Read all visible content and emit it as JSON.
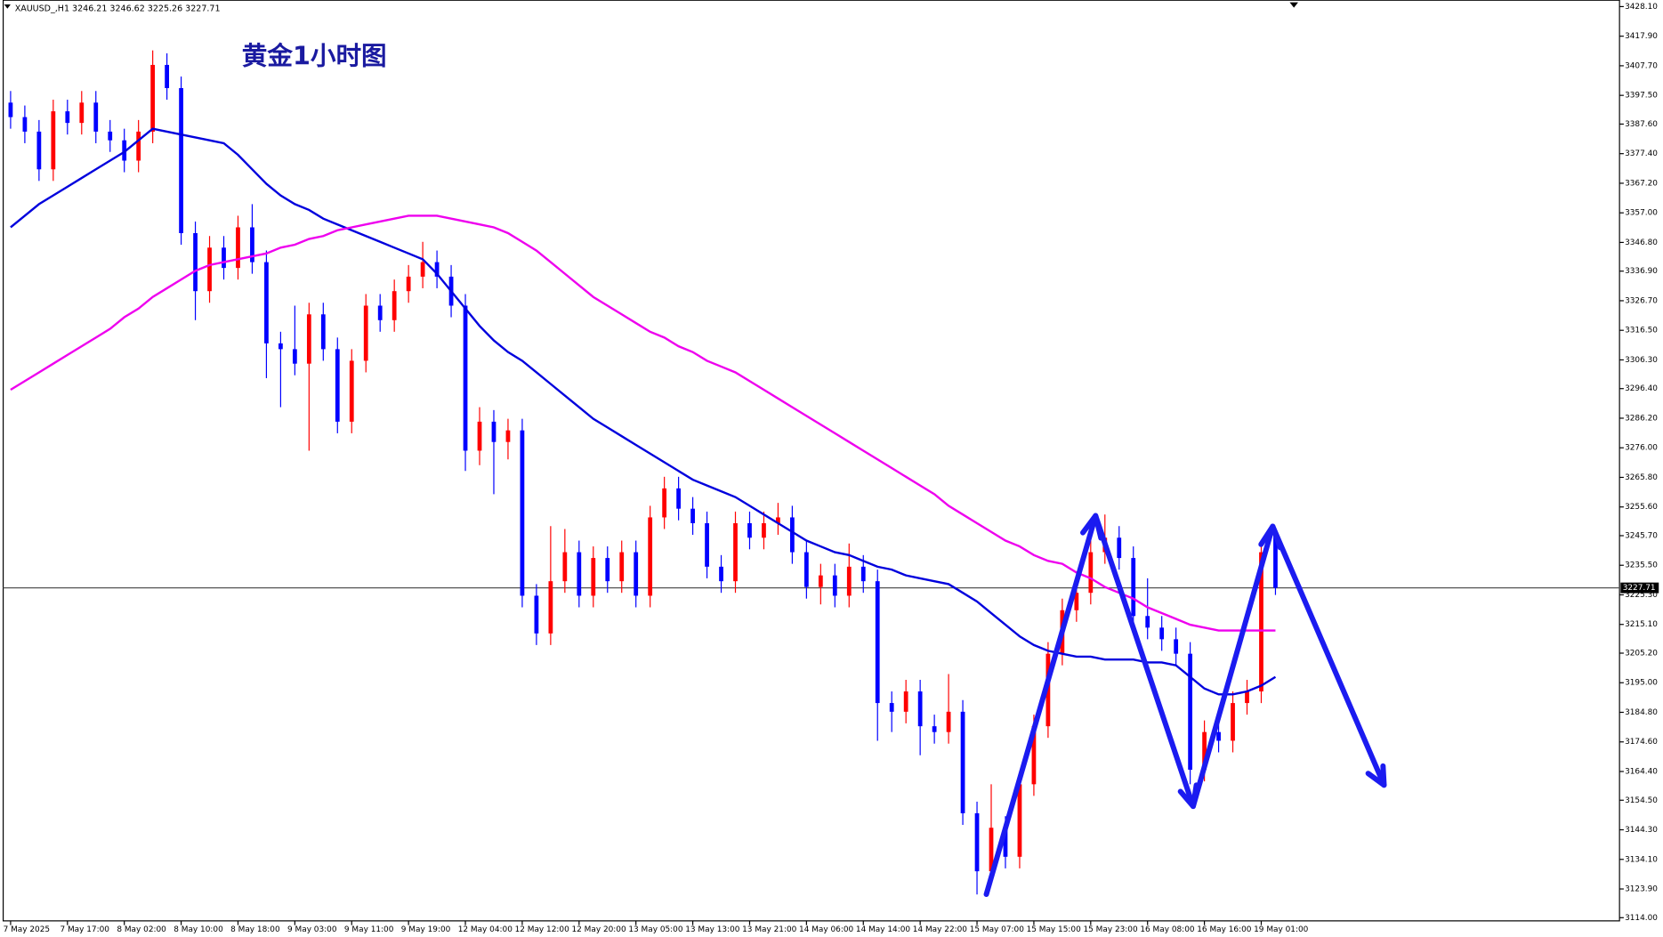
{
  "chart_data": {
    "type": "candlestick",
    "header": "XAUUSD_,H1  3246.21 3246.62 3225.26 3227.71",
    "title": "黄金1小时图",
    "up_color": "#ff0000",
    "down_color": "#0000ff",
    "categories": [
      "7 May 2025",
      null,
      null,
      null,
      "7 May 17:00",
      null,
      null,
      null,
      "8 May 02:00",
      null,
      null,
      null,
      "8 May 10:00",
      null,
      null,
      null,
      "8 May 18:00",
      null,
      null,
      null,
      "9 May 03:00",
      null,
      null,
      null,
      "9 May 11:00",
      null,
      null,
      null,
      "9 May 19:00",
      null,
      null,
      null,
      "12 May 04:00",
      null,
      null,
      null,
      "12 May 12:00",
      null,
      null,
      null,
      "12 May 20:00",
      null,
      null,
      null,
      "13 May 05:00",
      null,
      null,
      null,
      "13 May 13:00",
      null,
      null,
      null,
      "13 May 21:00",
      null,
      null,
      null,
      "14 May 06:00",
      null,
      null,
      null,
      "14 May 14:00",
      null,
      null,
      null,
      "14 May 22:00",
      null,
      null,
      null,
      "15 May 07:00",
      null,
      null,
      null,
      "15 May 15:00",
      null,
      null,
      null,
      "15 May 23:00",
      null,
      null,
      null,
      "16 May 08:00",
      null,
      null,
      null,
      "16 May 16:00",
      null,
      null,
      null,
      "19 May 01:00",
      null
    ],
    "open": [
      3395,
      3390,
      3385,
      3372,
      3392,
      3388,
      3395,
      3385,
      3382,
      3375,
      3385,
      3408,
      3400,
      3350,
      3330,
      3345,
      3338,
      3352,
      3340,
      3312,
      3310,
      3305,
      3322,
      3310,
      3285,
      3306,
      3325,
      3320,
      3330,
      3335,
      3340,
      3335,
      3325,
      3275,
      3285,
      3278,
      3282,
      3225,
      3212,
      3230,
      3240,
      3225,
      3238,
      3230,
      3240,
      3225,
      3252,
      3262,
      3255,
      3250,
      3235,
      3230,
      3250,
      3245,
      3250,
      3252,
      3240,
      3228,
      3232,
      3225,
      3235,
      3230,
      3188,
      3185,
      3192,
      3180,
      3178,
      3185,
      3150,
      3130,
      3145,
      3135,
      3160,
      3180,
      3205,
      3220,
      3226,
      3240,
      3245,
      3238,
      3218,
      3214,
      3210,
      3205,
      3165,
      3178,
      3175,
      3188,
      3192,
      3246.21
    ],
    "high": [
      3399,
      3394,
      3389,
      3396,
      3396,
      3399,
      3399,
      3389,
      3386,
      3389,
      3413,
      3412,
      3404,
      3354,
      3349,
      3349,
      3356,
      3360,
      3344,
      3316,
      3325,
      3326,
      3326,
      3314,
      3310,
      3329,
      3329,
      3334,
      3339,
      3347,
      3344,
      3339,
      3329,
      3290,
      3289,
      3286,
      3286,
      3229,
      3249,
      3248,
      3244,
      3242,
      3242,
      3244,
      3244,
      3256,
      3266,
      3266,
      3259,
      3254,
      3239,
      3254,
      3254,
      3254,
      3257,
      3256,
      3244,
      3236,
      3236,
      3243,
      3239,
      3234,
      3192,
      3196,
      3196,
      3184,
      3198,
      3189,
      3154,
      3160,
      3149,
      3164,
      3184,
      3209,
      3224,
      3230,
      3244,
      3253,
      3249,
      3242,
      3231,
      3218,
      3214,
      3209,
      3182,
      3182,
      3192,
      3196,
      3244,
      3246.62
    ],
    "low": [
      3386,
      3381,
      3368,
      3368,
      3384,
      3384,
      3381,
      3378,
      3371,
      3371,
      3381,
      3396,
      3346,
      3320,
      3326,
      3334,
      3334,
      3336,
      3300,
      3290,
      3301,
      3275,
      3306,
      3281,
      3281,
      3302,
      3316,
      3316,
      3326,
      3331,
      3331,
      3321,
      3268,
      3270,
      3260,
      3272,
      3221,
      3208,
      3208,
      3226,
      3221,
      3221,
      3226,
      3226,
      3221,
      3221,
      3248,
      3251,
      3246,
      3231,
      3226,
      3226,
      3241,
      3241,
      3246,
      3236,
      3224,
      3222,
      3221,
      3221,
      3226,
      3175,
      3178,
      3181,
      3170,
      3174,
      3174,
      3146,
      3122,
      3126,
      3131,
      3131,
      3156,
      3176,
      3201,
      3216,
      3222,
      3236,
      3234,
      3214,
      3210,
      3206,
      3201,
      3160,
      3161,
      3171,
      3171,
      3184,
      3188,
      3225.26
    ],
    "close": [
      3390,
      3385,
      3372,
      3392,
      3388,
      3395,
      3385,
      3382,
      3375,
      3385,
      3408,
      3400,
      3350,
      3330,
      3345,
      3338,
      3352,
      3340,
      3312,
      3310,
      3305,
      3322,
      3310,
      3285,
      3306,
      3325,
      3320,
      3330,
      3335,
      3340,
      3335,
      3325,
      3275,
      3285,
      3278,
      3282,
      3225,
      3212,
      3230,
      3240,
      3225,
      3238,
      3230,
      3240,
      3225,
      3252,
      3262,
      3255,
      3250,
      3235,
      3230,
      3250,
      3245,
      3250,
      3252,
      3240,
      3228,
      3232,
      3225,
      3235,
      3230,
      3188,
      3185,
      3192,
      3180,
      3178,
      3185,
      3150,
      3130,
      3145,
      3135,
      3160,
      3180,
      3205,
      3220,
      3226,
      3240,
      3245,
      3238,
      3218,
      3214,
      3210,
      3205,
      3165,
      3178,
      3175,
      3188,
      3192,
      3240,
      3227.71
    ],
    "series": [
      {
        "color": "#0000dd",
        "values": [
          3352,
          3356,
          3360,
          3363,
          3366,
          3369,
          3372,
          3375,
          3378,
          3382,
          3386,
          3385,
          3384,
          3383,
          3382,
          3381,
          3377,
          3372,
          3367,
          3363,
          3360,
          3358,
          3355,
          3353,
          3351,
          3349,
          3347,
          3345,
          3343,
          3341,
          3336,
          3330,
          3324,
          3318,
          3313,
          3309,
          3306,
          3302,
          3298,
          3294,
          3290,
          3286,
          3283,
          3280,
          3277,
          3274,
          3271,
          3268,
          3265,
          3263,
          3261,
          3259,
          3256,
          3253,
          3250,
          3247,
          3244,
          3242,
          3240,
          3239,
          3237,
          3235,
          3234,
          3232,
          3231,
          3230,
          3229,
          3226,
          3223,
          3219,
          3215,
          3211,
          3208,
          3206,
          3205,
          3204,
          3204,
          3203,
          3203,
          3203,
          3202,
          3202,
          3201,
          3197,
          3193,
          3191,
          3191,
          3192,
          3194,
          3197
        ]
      },
      {
        "color": "#ee00ee",
        "values": [
          3296,
          3299,
          3302,
          3305,
          3308,
          3311,
          3314,
          3317,
          3321,
          3324,
          3328,
          3331,
          3334,
          3337,
          3339,
          3340,
          3341,
          3342,
          3343,
          3345,
          3346,
          3348,
          3349,
          3351,
          3352,
          3353,
          3354,
          3355,
          3356,
          3356,
          3356,
          3355,
          3354,
          3353,
          3352,
          3350,
          3347,
          3344,
          3340,
          3336,
          3332,
          3328,
          3325,
          3322,
          3319,
          3316,
          3314,
          3311,
          3309,
          3306,
          3304,
          3302,
          3299,
          3296,
          3293,
          3290,
          3287,
          3284,
          3281,
          3278,
          3275,
          3272,
          3269,
          3266,
          3263,
          3260,
          3256,
          3253,
          3250,
          3247,
          3244,
          3242,
          3239,
          3237,
          3236,
          3233,
          3231,
          3228,
          3226,
          3224,
          3221,
          3219,
          3217,
          3215,
          3214,
          3213,
          3213,
          3213,
          3213,
          3213
        ]
      }
    ],
    "current_price": 3227.71,
    "ylim": [
      3112.9,
      3430.3
    ],
    "yticks": [
      {
        "value": 3428.1,
        "label": "3428.10"
      },
      {
        "value": 3417.9,
        "label": "3417.90"
      },
      {
        "value": 3407.7,
        "label": "3407.70"
      },
      {
        "value": 3397.5,
        "label": "3397.50"
      },
      {
        "value": 3387.6,
        "label": "3387.60"
      },
      {
        "value": 3377.4,
        "label": "3377.40"
      },
      {
        "value": 3367.2,
        "label": "3367.20"
      },
      {
        "value": 3357,
        "label": "3357.00"
      },
      {
        "value": 3346.8,
        "label": "3346.80"
      },
      {
        "value": 3336.9,
        "label": "3336.90"
      },
      {
        "value": 3326.7,
        "label": "3326.70"
      },
      {
        "value": 3316.5,
        "label": "3316.50"
      },
      {
        "value": 3306.3,
        "label": "3306.30"
      },
      {
        "value": 3296.4,
        "label": "3296.40"
      },
      {
        "value": 3286.2,
        "label": "3286.20"
      },
      {
        "value": 3276,
        "label": "3276.00"
      },
      {
        "value": 3265.8,
        "label": "3265.80"
      },
      {
        "value": 3255.6,
        "label": "3255.60"
      },
      {
        "value": 3245.7,
        "label": "3245.70"
      },
      {
        "value": 3235.5,
        "label": "3235.50"
      },
      {
        "value": 3225.3,
        "label": "3225.30"
      },
      {
        "value": 3215.1,
        "label": "3215.10"
      },
      {
        "value": 3205.2,
        "label": "3205.20"
      },
      {
        "value": 3195,
        "label": "3195.00"
      },
      {
        "value": 3184.8,
        "label": "3184.80"
      },
      {
        "value": 3174.6,
        "label": "3174.60"
      },
      {
        "value": 3164.4,
        "label": "3164.40"
      },
      {
        "value": 3154.5,
        "label": "3154.50"
      },
      {
        "value": 3144.3,
        "label": "3144.30"
      },
      {
        "value": 3134.1,
        "label": "3134.10"
      },
      {
        "value": 3123.9,
        "label": "3123.90"
      },
      {
        "value": 3114,
        "label": "3114.00"
      }
    ]
  }
}
